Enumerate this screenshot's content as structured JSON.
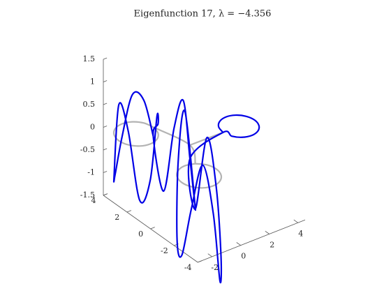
{
  "chart_data": {
    "type": "line3d",
    "title": "Eigenfunction 17, λ = −4.356",
    "xlim": [
      -3,
      4.5
    ],
    "ylim": [
      -4,
      4
    ],
    "zlim": [
      -1.5,
      1.5
    ],
    "xticks": [
      -2,
      0,
      2,
      4
    ],
    "yticks": [
      -4,
      -2,
      0,
      2,
      4
    ],
    "zticks": [
      -1.5,
      -1,
      -0.5,
      0,
      0.5,
      1,
      1.5
    ],
    "series": [
      {
        "color": "#b3b3b3",
        "x": [
          -0.75,
          -0.91,
          -1.35,
          -1.95,
          -2.55,
          -2.99,
          -3.15,
          -2.99,
          -2.55,
          -1.95,
          -1.35,
          -0.91,
          -0.75,
          null,
          -0.75,
          -0.24,
          -1.17,
          null,
          -1.17,
          -1.77,
          -2.37,
          -2.81,
          -2.97,
          -2.81,
          -2.37,
          -1.77,
          -1.17,
          -0.73,
          -0.57,
          -0.73,
          -1.17,
          null,
          -0.24,
          2.05
        ],
        "y": [
          2.5,
          3.1,
          3.54,
          3.7,
          3.54,
          3.1,
          2.5,
          1.9,
          1.46,
          1.3,
          1.46,
          1.9,
          2.5,
          null,
          2.5,
          0.01,
          -1.58,
          null,
          -1.58,
          -1.42,
          -1.58,
          -2.02,
          -2.62,
          -3.22,
          -3.66,
          -3.82,
          -3.66,
          -3.22,
          -2.62,
          -2.02,
          -1.58,
          null,
          0.01,
          -0.02
        ],
        "z": [
          0,
          0,
          0,
          0,
          0,
          0,
          0,
          0,
          0,
          0,
          0,
          0,
          0,
          null,
          0,
          0,
          0,
          null,
          0,
          0,
          0,
          0,
          0,
          0,
          0,
          0,
          0,
          0,
          0,
          0,
          0,
          null,
          0,
          0
        ]
      },
      {
        "color": "#0000e6",
        "x": [
          -0.75,
          -0.91,
          -1.35,
          -1.95,
          -2.55,
          -2.99,
          -3.15,
          -2.99,
          -2.55,
          -1.95,
          -1.35,
          -0.91,
          -0.75,
          -0.6,
          -0.45,
          -0.3,
          -0.24,
          -1.17,
          -1.77,
          -2.37,
          -2.81,
          -2.97,
          -2.81,
          -2.37,
          -1.77,
          -1.17,
          -0.73,
          -0.57,
          -0.73,
          -1.17,
          -0.24,
          2.05,
          2.2,
          2.6,
          3.15,
          3.7,
          4.1,
          4.25,
          4.1,
          3.7,
          3.15,
          2.6,
          2.2,
          2.05
        ],
        "y": [
          2.5,
          3.1,
          3.54,
          3.7,
          3.54,
          3.1,
          2.5,
          1.9,
          1.46,
          1.3,
          1.46,
          1.9,
          2.5,
          1.8,
          1.1,
          0.5,
          0.01,
          -1.58,
          -1.42,
          -1.58,
          -2.02,
          -2.62,
          -3.22,
          -3.66,
          -3.82,
          -3.66,
          -3.22,
          -2.62,
          -2.02,
          -1.58,
          0.01,
          -0.02,
          -0.57,
          -0.97,
          -1.12,
          -0.97,
          -0.57,
          -0.02,
          0.53,
          0.93,
          1.08,
          0.93,
          0.53,
          -0.02
        ],
        "z": [
          -0.2,
          0.5,
          0.6,
          -0.3,
          -1.0,
          -0.9,
          0.8,
          0.3,
          -1.2,
          -0.8,
          0.5,
          0.2,
          -0.2,
          -1.3,
          0.2,
          0.9,
          -0.3,
          -1.0,
          1.2,
          0.2,
          -1.4,
          -1.6,
          -0.5,
          0.5,
          -0.6,
          -2.2,
          -1.8,
          -0.4,
          0.6,
          -1.0,
          -0.3,
          0,
          0,
          0,
          0,
          0,
          0,
          0,
          0,
          0,
          0,
          0,
          0,
          0
        ]
      }
    ]
  }
}
